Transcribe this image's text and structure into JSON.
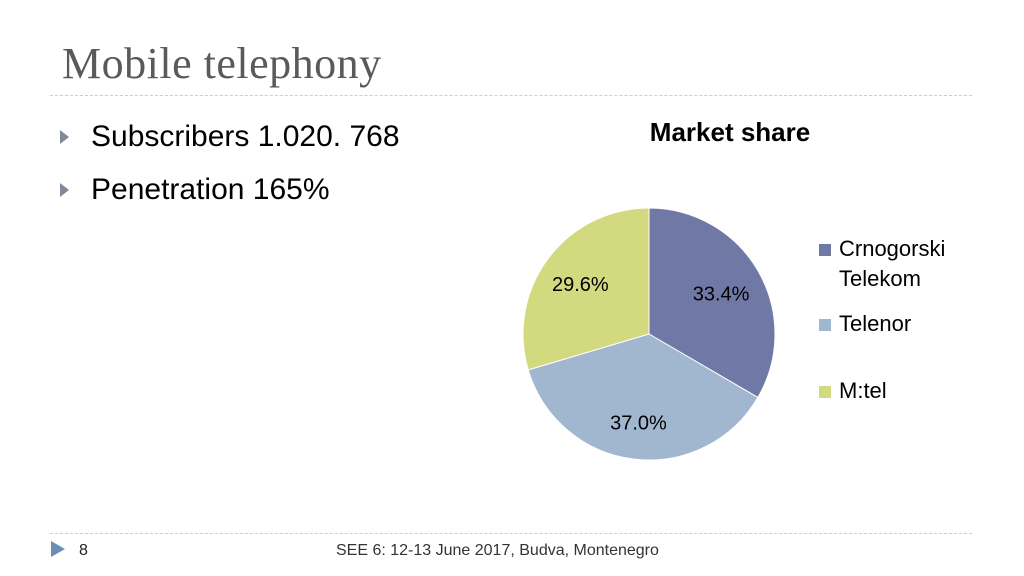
{
  "slide": {
    "title": "Mobile telephony",
    "bullets": [
      "Subscribers 1.020. 768",
      "Penetration 165%"
    ],
    "page_number": "8",
    "footer": "SEE 6: 12-13 June 2017, Budva, Montenegro"
  },
  "chart_data": {
    "type": "pie",
    "title": "Market share",
    "legend_position": "right",
    "series": [
      {
        "name": "Crnogorski Telekom",
        "value": 33.4,
        "label": "33.4%",
        "color": "#7079a6"
      },
      {
        "name": "Telenor",
        "value": 37.0,
        "label": "37.0%",
        "color": "#a1b6cf"
      },
      {
        "name": "M:tel",
        "value": 29.6,
        "label": "29.6%",
        "color": "#d2d97f"
      }
    ]
  }
}
